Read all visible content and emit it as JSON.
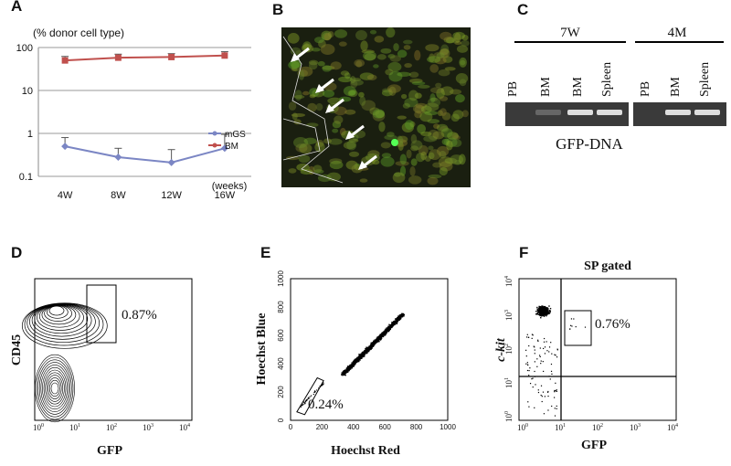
{
  "chart_data": {
    "type": "line",
    "panel_label": "A",
    "y_label": "(% donor cell type)",
    "x_label": "(weeks)",
    "categories": [
      "4W",
      "8W",
      "12W",
      "16W"
    ],
    "log_scale": true,
    "ylim": [
      0.1,
      100
    ],
    "yticks": [
      0.1,
      1,
      10,
      100
    ],
    "grid": true,
    "legend": "right",
    "series": [
      {
        "name": "mGS",
        "color": "#7b86c4",
        "values": [
          0.5,
          0.28,
          0.21,
          0.45
        ],
        "errors": [
          0.3,
          0.17,
          0.21,
          0.5
        ]
      },
      {
        "name": "BM",
        "color": "#c0504d",
        "values": [
          50,
          58,
          60,
          65
        ],
        "errors": [
          12,
          12,
          12,
          15
        ]
      }
    ]
  },
  "panels": [
    {
      "label": "B"
    },
    {
      "label": "C",
      "groups": [
        {
          "label": "7W",
          "lanes": [
            "PB",
            "BM",
            "BM",
            "Spleen"
          ]
        },
        {
          "label": "4M",
          "lanes": [
            "PB",
            "BM",
            "Spleen"
          ]
        }
      ],
      "caption": "GFP-DNA"
    },
    {
      "label": "D",
      "y_label": "CD45",
      "x_label": "GFP",
      "gate_label": "0.87%",
      "xticks": [
        {
          "base": "10",
          "exp": "0"
        },
        {
          "base": "10",
          "exp": "1"
        },
        {
          "base": "10",
          "exp": "2"
        },
        {
          "base": "10",
          "exp": "3"
        },
        {
          "base": "10",
          "exp": "4"
        }
      ]
    },
    {
      "label": "E",
      "y_label": "Hoechst Blue",
      "x_label": "Hoechst Red",
      "gate_label": "0.24%",
      "xticks": [
        0,
        200,
        400,
        600,
        800,
        1000
      ],
      "yticks": [
        0,
        200,
        400,
        600,
        800,
        1000
      ]
    },
    {
      "label": "F",
      "title": "SP gated",
      "y_label": "c-kit",
      "x_label": "GFP",
      "gate_label": "0.76%",
      "xticks": [
        {
          "base": "10",
          "exp": "0"
        },
        {
          "base": "10",
          "exp": "1"
        },
        {
          "base": "10",
          "exp": "2"
        },
        {
          "base": "10",
          "exp": "3"
        },
        {
          "base": "10",
          "exp": "4"
        }
      ],
      "yticks": [
        {
          "base": "10",
          "exp": "0"
        },
        {
          "base": "10",
          "exp": "1"
        },
        {
          "base": "10",
          "exp": "2"
        },
        {
          "base": "10",
          "exp": "3"
        },
        {
          "base": "10",
          "exp": "4"
        }
      ]
    }
  ]
}
